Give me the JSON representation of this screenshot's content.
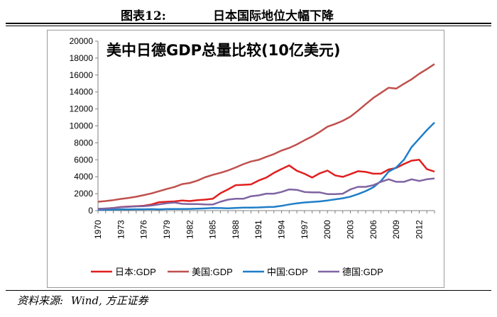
{
  "figure": {
    "label": "图表12:",
    "caption": "日本国际地位大幅下降",
    "source_label": "资料来源:",
    "source_text": "Wind, 方正证券"
  },
  "colors": {
    "japan": "#e11f1f",
    "us": "#c0504d",
    "china": "#1f7ec8",
    "germany": "#8064a2",
    "axis": "#808080",
    "grid": "#d9d9d9"
  },
  "chart_data": {
    "type": "line",
    "title": "美中日德GDP总量比较(10亿美元)",
    "xlabel": "",
    "ylabel": "",
    "xlim": [
      1970,
      2014
    ],
    "ylim": [
      0,
      20000
    ],
    "yticks": [
      "0",
      "2000",
      "4000",
      "6000",
      "8000",
      "10000",
      "12000",
      "14000",
      "16000",
      "18000",
      "20000"
    ],
    "xticks": [
      "1970",
      "1973",
      "1976",
      "1979",
      "1982",
      "1985",
      "1988",
      "1991",
      "1994",
      "1997",
      "2000",
      "2003",
      "2006",
      "2009",
      "2012"
    ],
    "legend_position": "bottom",
    "x": [
      1970,
      1971,
      1972,
      1973,
      1974,
      1975,
      1976,
      1977,
      1978,
      1979,
      1980,
      1981,
      1982,
      1983,
      1984,
      1985,
      1986,
      1987,
      1988,
      1989,
      1990,
      1991,
      1992,
      1993,
      1994,
      1995,
      1996,
      1997,
      1998,
      1999,
      2000,
      2001,
      2002,
      2003,
      2004,
      2005,
      2006,
      2007,
      2008,
      2009,
      2010,
      2011,
      2012,
      2013,
      2014
    ],
    "series": [
      {
        "name": "日本:GDP",
        "color_key": "japan",
        "values": [
          210,
          240,
          320,
          430,
          480,
          520,
          580,
          730,
          1000,
          1050,
          1090,
          1200,
          1130,
          1240,
          1300,
          1400,
          2050,
          2500,
          3000,
          3050,
          3100,
          3550,
          3900,
          4450,
          4900,
          5330,
          4700,
          4350,
          3900,
          4400,
          4730,
          4160,
          3980,
          4300,
          4650,
          4570,
          4360,
          4360,
          4850,
          5040,
          5500,
          5900,
          6000,
          4900,
          4600
        ]
      },
      {
        "name": "美国:GDP",
        "color_key": "us",
        "values": [
          1050,
          1130,
          1240,
          1380,
          1500,
          1640,
          1830,
          2030,
          2290,
          2560,
          2790,
          3130,
          3260,
          3540,
          3930,
          4220,
          4460,
          4740,
          5100,
          5480,
          5800,
          5990,
          6340,
          6670,
          7090,
          7400,
          7820,
          8300,
          8750,
          9300,
          9900,
          10230,
          10590,
          11090,
          11800,
          12560,
          13300,
          13900,
          14500,
          14400,
          14960,
          15500,
          16150,
          16700,
          17300
        ]
      },
      {
        "name": "中国:GDP",
        "color_key": "china",
        "values": [
          92,
          100,
          115,
          140,
          145,
          160,
          155,
          175,
          150,
          180,
          190,
          196,
          205,
          230,
          260,
          310,
          300,
          273,
          312,
          348,
          360,
          380,
          420,
          445,
          560,
          730,
          860,
          960,
          1030,
          1090,
          1200,
          1330,
          1460,
          1650,
          1950,
          2300,
          2750,
          3500,
          4600,
          5100,
          6000,
          7500,
          8500,
          9500,
          10400
        ]
      },
      {
        "name": "德国:GDP",
        "color_key": "germany",
        "values": [
          210,
          250,
          300,
          400,
          450,
          500,
          520,
          600,
          740,
          880,
          950,
          800,
          780,
          770,
          730,
          720,
          1050,
          1300,
          1400,
          1400,
          1700,
          1800,
          2000,
          2000,
          2200,
          2500,
          2450,
          2200,
          2150,
          2150,
          1950,
          1950,
          2000,
          2500,
          2800,
          2800,
          3000,
          3400,
          3700,
          3400,
          3400,
          3700,
          3500,
          3700,
          3800
        ]
      }
    ]
  }
}
